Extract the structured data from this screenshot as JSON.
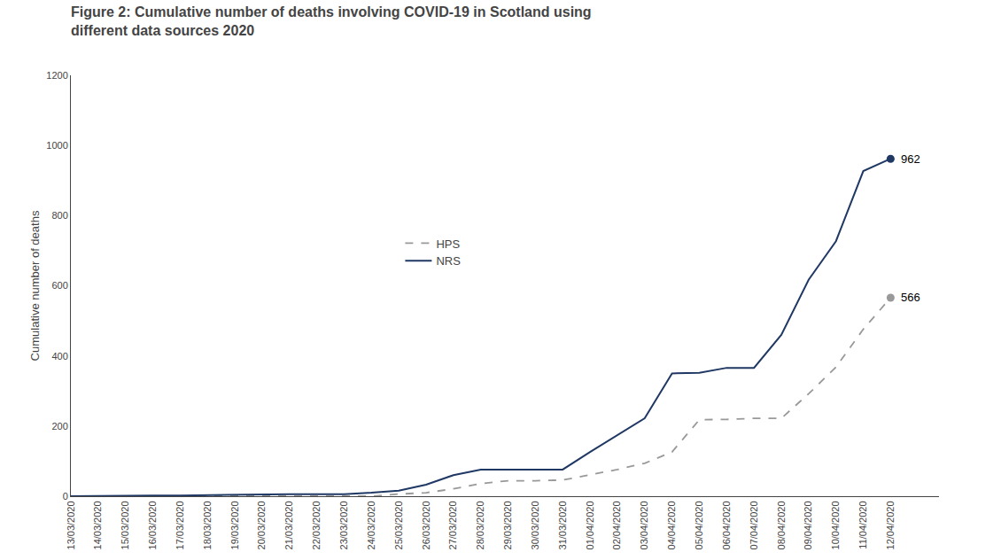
{
  "chart_data": {
    "type": "line",
    "title": "Figure 2: Cumulative number of deaths involving COVID-19 in Scotland using\ndifferent data sources 2020",
    "ylabel": "Cumulative number of deaths",
    "categories": [
      "13/03/2020",
      "14/03/2020",
      "15/03/2020",
      "16/03/2020",
      "17/03/2020",
      "18/03/2020",
      "19/03/2020",
      "20/03/2020",
      "21/03/2020",
      "22/03/2020",
      "23/03/2020",
      "24/03/2020",
      "25/03/2020",
      "26/03/2020",
      "27/03/2020",
      "28/03/2020",
      "29/03/2020",
      "30/03/2020",
      "31/03/2020",
      "01/04/2020",
      "02/04/2020",
      "03/04/2020",
      "04/04/2020",
      "05/04/2020",
      "06/04/2020",
      "07/04/2020",
      "08/04/2020",
      "09/04/2020",
      "10/04/2020",
      "11/04/2020",
      "12/04/2020"
    ],
    "series": [
      {
        "name": "HPS",
        "color": "#999999",
        "line_style": "dashed",
        "values": [
          0,
          0,
          0,
          0,
          0,
          0,
          0,
          0,
          0,
          0,
          0,
          0,
          6,
          10,
          21,
          36,
          44,
          44,
          46,
          61,
          76,
          94,
          126,
          218,
          219,
          222,
          222,
          292,
          368,
          476,
          566
        ]
      },
      {
        "name": "NRS",
        "color": "#1f3864",
        "line_style": "solid",
        "values": [
          0,
          1,
          2,
          2,
          2,
          3,
          5,
          6,
          6,
          6,
          6,
          10,
          16,
          33,
          60,
          76,
          76,
          76,
          76,
          126,
          175,
          222,
          350,
          352,
          366,
          366,
          460,
          617,
          727,
          927,
          962
        ]
      }
    ],
    "annotations": [
      {
        "text": "962",
        "x": "12/04/2020",
        "y": 962,
        "series": "NRS"
      },
      {
        "text": "566",
        "x": "12/04/2020",
        "y": 566,
        "series": "HPS"
      }
    ],
    "ylim": [
      0,
      1200
    ],
    "yticks": [
      0,
      200,
      400,
      600,
      800,
      1000,
      1200
    ],
    "grid": false,
    "legend": "center"
  }
}
